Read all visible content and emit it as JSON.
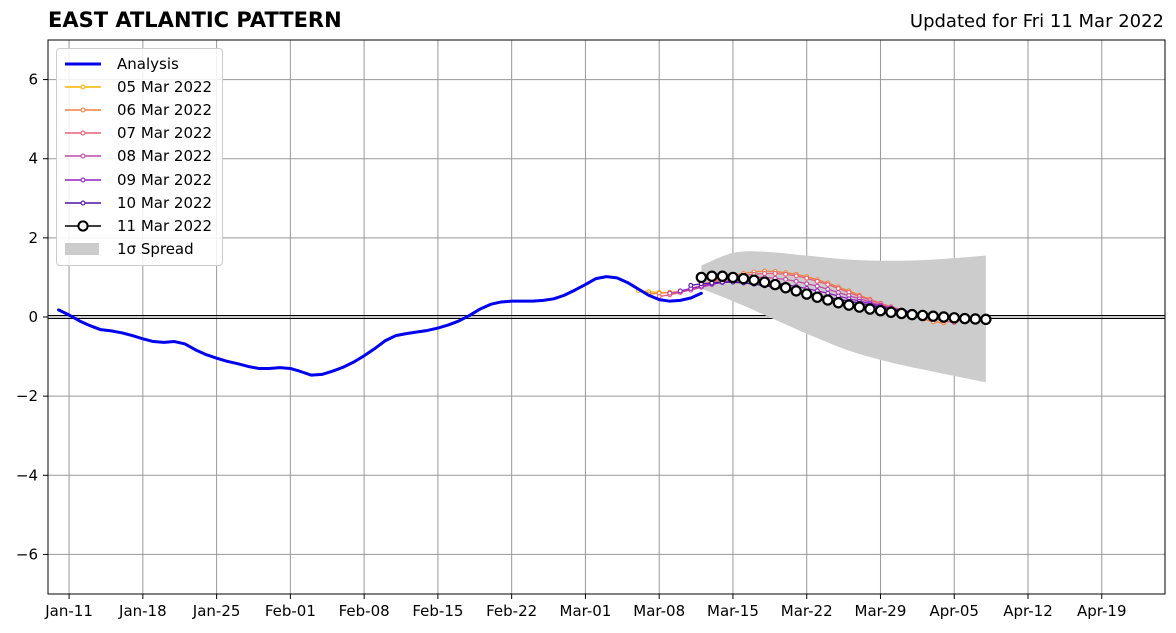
{
  "chart_data": {
    "type": "line",
    "title": "EAST ATLANTIC PATTERN",
    "subtitle": "Updated for Fri 11 Mar 2022",
    "xlabel": "",
    "ylabel": "",
    "ylim": [
      -7,
      7
    ],
    "yticks": [
      -6,
      -4,
      -2,
      0,
      2,
      4,
      6
    ],
    "ytick_labels": [
      "−6",
      "−4",
      "−2",
      "0",
      "2",
      "4",
      "6"
    ],
    "xlim": [
      "2022-01-09",
      "2022-04-25"
    ],
    "xticks": [
      "2022-01-11",
      "2022-01-18",
      "2022-01-25",
      "2022-02-01",
      "2022-02-08",
      "2022-02-15",
      "2022-02-22",
      "2022-03-01",
      "2022-03-08",
      "2022-03-15",
      "2022-03-22",
      "2022-03-29",
      "2022-04-05",
      "2022-04-12",
      "2022-04-19"
    ],
    "xtick_labels": [
      "Jan-11",
      "Jan-18",
      "Jan-25",
      "Feb-01",
      "Feb-08",
      "Feb-15",
      "Feb-22",
      "Mar-01",
      "Mar-08",
      "Mar-15",
      "Mar-22",
      "Mar-29",
      "Apr-05",
      "Apr-12",
      "Apr-19"
    ],
    "grid": true,
    "legend_position": "top-left",
    "analysis": {
      "name": "Analysis",
      "color": "#0000ee",
      "points": [
        [
          "2022-01-10",
          0.18
        ],
        [
          "2022-01-11",
          0.05
        ],
        [
          "2022-01-12",
          -0.1
        ],
        [
          "2022-01-13",
          -0.22
        ],
        [
          "2022-01-14",
          -0.32
        ],
        [
          "2022-01-15",
          -0.35
        ],
        [
          "2022-01-16",
          -0.4
        ],
        [
          "2022-01-17",
          -0.47
        ],
        [
          "2022-01-18",
          -0.55
        ],
        [
          "2022-01-19",
          -0.62
        ],
        [
          "2022-01-20",
          -0.64
        ],
        [
          "2022-01-21",
          -0.62
        ],
        [
          "2022-01-22",
          -0.68
        ],
        [
          "2022-01-23",
          -0.83
        ],
        [
          "2022-01-24",
          -0.95
        ],
        [
          "2022-01-25",
          -1.04
        ],
        [
          "2022-01-26",
          -1.12
        ],
        [
          "2022-01-27",
          -1.18
        ],
        [
          "2022-01-28",
          -1.25
        ],
        [
          "2022-01-29",
          -1.3
        ],
        [
          "2022-01-30",
          -1.3
        ],
        [
          "2022-01-31",
          -1.28
        ],
        [
          "2022-02-01",
          -1.3
        ],
        [
          "2022-02-02",
          -1.38
        ],
        [
          "2022-02-03",
          -1.47
        ],
        [
          "2022-02-04",
          -1.45
        ],
        [
          "2022-02-05",
          -1.37
        ],
        [
          "2022-02-06",
          -1.27
        ],
        [
          "2022-02-07",
          -1.14
        ],
        [
          "2022-02-08",
          -0.98
        ],
        [
          "2022-02-09",
          -0.8
        ],
        [
          "2022-02-10",
          -0.6
        ],
        [
          "2022-02-11",
          -0.47
        ],
        [
          "2022-02-12",
          -0.42
        ],
        [
          "2022-02-13",
          -0.38
        ],
        [
          "2022-02-14",
          -0.34
        ],
        [
          "2022-02-15",
          -0.28
        ],
        [
          "2022-02-16",
          -0.2
        ],
        [
          "2022-02-17",
          -0.1
        ],
        [
          "2022-02-18",
          0.04
        ],
        [
          "2022-02-19",
          0.2
        ],
        [
          "2022-02-20",
          0.32
        ],
        [
          "2022-02-21",
          0.38
        ],
        [
          "2022-02-22",
          0.4
        ],
        [
          "2022-02-23",
          0.4
        ],
        [
          "2022-02-24",
          0.4
        ],
        [
          "2022-02-25",
          0.42
        ],
        [
          "2022-02-26",
          0.46
        ],
        [
          "2022-02-27",
          0.55
        ],
        [
          "2022-02-28",
          0.68
        ],
        [
          "2022-03-01",
          0.82
        ],
        [
          "2022-03-02",
          0.97
        ],
        [
          "2022-03-03",
          1.02
        ],
        [
          "2022-03-04",
          0.99
        ],
        [
          "2022-03-05",
          0.87
        ],
        [
          "2022-03-06",
          0.71
        ],
        [
          "2022-03-07",
          0.55
        ],
        [
          "2022-03-08",
          0.44
        ],
        [
          "2022-03-09",
          0.4
        ],
        [
          "2022-03-10",
          0.42
        ],
        [
          "2022-03-11",
          0.48
        ],
        [
          "2022-03-12",
          0.6
        ]
      ]
    },
    "spread": {
      "name": "1σ Spread",
      "color": "#cccccc",
      "start": "2022-03-12",
      "end": "2022-04-08",
      "upper": [
        [
          "2022-03-12",
          1.3
        ],
        [
          "2022-03-15",
          1.62
        ],
        [
          "2022-03-18",
          1.65
        ],
        [
          "2022-03-22",
          1.55
        ],
        [
          "2022-03-26",
          1.45
        ],
        [
          "2022-03-30",
          1.42
        ],
        [
          "2022-04-03",
          1.45
        ],
        [
          "2022-04-08",
          1.55
        ]
      ],
      "lower": [
        [
          "2022-03-12",
          0.72
        ],
        [
          "2022-03-15",
          0.4
        ],
        [
          "2022-03-18",
          0.05
        ],
        [
          "2022-03-22",
          -0.42
        ],
        [
          "2022-03-26",
          -0.85
        ],
        [
          "2022-03-30",
          -1.15
        ],
        [
          "2022-04-03",
          -1.38
        ],
        [
          "2022-04-08",
          -1.65
        ]
      ]
    },
    "series": [
      {
        "name": "05 Mar 2022",
        "color": "#ffb300",
        "points": [
          [
            "2022-03-06",
            0.67
          ],
          [
            "2022-03-07",
            0.64
          ],
          [
            "2022-03-08",
            0.62
          ],
          [
            "2022-03-09",
            0.62
          ],
          [
            "2022-03-10",
            0.63
          ]
        ]
      },
      {
        "name": "06 Mar 2022",
        "color": "#f08040",
        "points": [
          [
            "2022-03-07",
            0.58
          ],
          [
            "2022-03-08",
            0.6
          ],
          [
            "2022-03-09",
            0.62
          ],
          [
            "2022-03-10",
            0.65
          ],
          [
            "2022-03-11",
            0.72
          ],
          [
            "2022-03-12",
            0.8
          ],
          [
            "2022-03-13",
            0.9
          ],
          [
            "2022-03-14",
            0.98
          ],
          [
            "2022-03-15",
            1.05
          ],
          [
            "2022-03-16",
            1.1
          ],
          [
            "2022-03-17",
            1.14
          ],
          [
            "2022-03-18",
            1.16
          ],
          [
            "2022-03-19",
            1.15
          ],
          [
            "2022-03-20",
            1.12
          ],
          [
            "2022-03-21",
            1.08
          ],
          [
            "2022-03-22",
            1.02
          ],
          [
            "2022-03-23",
            0.94
          ],
          [
            "2022-03-24",
            0.86
          ],
          [
            "2022-03-25",
            0.76
          ],
          [
            "2022-03-26",
            0.66
          ],
          [
            "2022-03-27",
            0.55
          ],
          [
            "2022-03-28",
            0.45
          ],
          [
            "2022-03-29",
            0.35
          ],
          [
            "2022-03-30",
            0.25
          ],
          [
            "2022-03-31",
            0.15
          ],
          [
            "2022-04-01",
            0.05
          ],
          [
            "2022-04-02",
            -0.05
          ],
          [
            "2022-04-03",
            -0.12
          ],
          [
            "2022-04-04",
            -0.15
          ]
        ]
      },
      {
        "name": "07 Mar 2022",
        "color": "#e8607a",
        "points": [
          [
            "2022-03-08",
            0.52
          ],
          [
            "2022-03-09",
            0.56
          ],
          [
            "2022-03-10",
            0.62
          ],
          [
            "2022-03-11",
            0.7
          ],
          [
            "2022-03-12",
            0.78
          ],
          [
            "2022-03-13",
            0.86
          ],
          [
            "2022-03-14",
            0.94
          ],
          [
            "2022-03-15",
            1.0
          ],
          [
            "2022-03-16",
            1.05
          ],
          [
            "2022-03-17",
            1.08
          ],
          [
            "2022-03-18",
            1.1
          ],
          [
            "2022-03-19",
            1.1
          ],
          [
            "2022-03-20",
            1.08
          ],
          [
            "2022-03-21",
            1.04
          ],
          [
            "2022-03-22",
            0.98
          ],
          [
            "2022-03-23",
            0.9
          ],
          [
            "2022-03-24",
            0.82
          ],
          [
            "2022-03-25",
            0.72
          ],
          [
            "2022-03-26",
            0.62
          ],
          [
            "2022-03-27",
            0.52
          ],
          [
            "2022-03-28",
            0.43
          ],
          [
            "2022-03-29",
            0.34
          ],
          [
            "2022-03-30",
            0.26
          ],
          [
            "2022-03-31",
            0.18
          ],
          [
            "2022-04-01",
            0.1
          ],
          [
            "2022-04-02",
            0.03
          ],
          [
            "2022-04-03",
            -0.04
          ],
          [
            "2022-04-04",
            -0.1
          ],
          [
            "2022-04-05",
            -0.14
          ]
        ]
      },
      {
        "name": "08 Mar 2022",
        "color": "#c04aa8",
        "points": [
          [
            "2022-03-09",
            0.6
          ],
          [
            "2022-03-10",
            0.63
          ],
          [
            "2022-03-11",
            0.68
          ],
          [
            "2022-03-12",
            0.75
          ],
          [
            "2022-03-13",
            0.82
          ],
          [
            "2022-03-14",
            0.88
          ],
          [
            "2022-03-15",
            0.94
          ],
          [
            "2022-03-16",
            0.98
          ],
          [
            "2022-03-17",
            1.0
          ],
          [
            "2022-03-18",
            1.0
          ],
          [
            "2022-03-19",
            0.98
          ],
          [
            "2022-03-20",
            0.95
          ],
          [
            "2022-03-21",
            0.9
          ],
          [
            "2022-03-22",
            0.84
          ],
          [
            "2022-03-23",
            0.78
          ],
          [
            "2022-03-24",
            0.7
          ],
          [
            "2022-03-25",
            0.62
          ],
          [
            "2022-03-26",
            0.54
          ],
          [
            "2022-03-27",
            0.46
          ],
          [
            "2022-03-28",
            0.38
          ],
          [
            "2022-03-29",
            0.3
          ],
          [
            "2022-03-30",
            0.23
          ],
          [
            "2022-03-31",
            0.16
          ],
          [
            "2022-04-01",
            0.1
          ],
          [
            "2022-04-02",
            0.04
          ],
          [
            "2022-04-03",
            0.0
          ],
          [
            "2022-04-04",
            -0.03
          ],
          [
            "2022-04-05",
            -0.05
          ],
          [
            "2022-04-06",
            -0.06
          ]
        ]
      },
      {
        "name": "09 Mar 2022",
        "color": "#9020c0",
        "points": [
          [
            "2022-03-10",
            0.66
          ],
          [
            "2022-03-11",
            0.72
          ],
          [
            "2022-03-12",
            0.78
          ],
          [
            "2022-03-13",
            0.83
          ],
          [
            "2022-03-14",
            0.87
          ],
          [
            "2022-03-15",
            0.9
          ],
          [
            "2022-03-16",
            0.92
          ],
          [
            "2022-03-17",
            0.92
          ],
          [
            "2022-03-18",
            0.9
          ],
          [
            "2022-03-19",
            0.86
          ],
          [
            "2022-03-20",
            0.82
          ],
          [
            "2022-03-21",
            0.77
          ],
          [
            "2022-03-22",
            0.72
          ],
          [
            "2022-03-23",
            0.66
          ],
          [
            "2022-03-24",
            0.6
          ],
          [
            "2022-03-25",
            0.53
          ],
          [
            "2022-03-26",
            0.46
          ],
          [
            "2022-03-27",
            0.4
          ],
          [
            "2022-03-28",
            0.34
          ],
          [
            "2022-03-29",
            0.28
          ],
          [
            "2022-03-30",
            0.22
          ],
          [
            "2022-03-31",
            0.17
          ],
          [
            "2022-04-01",
            0.12
          ],
          [
            "2022-04-02",
            0.08
          ],
          [
            "2022-04-03",
            0.05
          ],
          [
            "2022-04-04",
            0.02
          ],
          [
            "2022-04-05",
            0.0
          ],
          [
            "2022-04-06",
            -0.02
          ],
          [
            "2022-04-07",
            -0.03
          ]
        ]
      },
      {
        "name": "10 Mar 2022",
        "color": "#5010a0",
        "points": [
          [
            "2022-03-11",
            0.8
          ],
          [
            "2022-03-12",
            0.84
          ],
          [
            "2022-03-13",
            0.86
          ],
          [
            "2022-03-14",
            0.88
          ],
          [
            "2022-03-15",
            0.88
          ],
          [
            "2022-03-16",
            0.86
          ],
          [
            "2022-03-17",
            0.83
          ],
          [
            "2022-03-18",
            0.79
          ],
          [
            "2022-03-19",
            0.75
          ],
          [
            "2022-03-20",
            0.7
          ],
          [
            "2022-03-21",
            0.65
          ],
          [
            "2022-03-22",
            0.6
          ],
          [
            "2022-03-23",
            0.55
          ],
          [
            "2022-03-24",
            0.5
          ],
          [
            "2022-03-25",
            0.45
          ],
          [
            "2022-03-26",
            0.4
          ],
          [
            "2022-03-27",
            0.35
          ],
          [
            "2022-03-28",
            0.3
          ],
          [
            "2022-03-29",
            0.25
          ],
          [
            "2022-03-30",
            0.2
          ],
          [
            "2022-03-31",
            0.16
          ],
          [
            "2022-04-01",
            0.12
          ],
          [
            "2022-04-02",
            0.08
          ],
          [
            "2022-04-03",
            0.05
          ],
          [
            "2022-04-04",
            0.02
          ],
          [
            "2022-04-05",
            0.0
          ],
          [
            "2022-04-06",
            -0.02
          ],
          [
            "2022-04-07",
            -0.03
          ],
          [
            "2022-04-08",
            -0.04
          ]
        ]
      },
      {
        "name": "11 Mar 2022",
        "color": "#000000",
        "points": [
          [
            "2022-03-12",
            1.0
          ],
          [
            "2022-03-13",
            1.03
          ],
          [
            "2022-03-14",
            1.03
          ],
          [
            "2022-03-15",
            1.0
          ],
          [
            "2022-03-16",
            0.97
          ],
          [
            "2022-03-17",
            0.93
          ],
          [
            "2022-03-18",
            0.88
          ],
          [
            "2022-03-19",
            0.82
          ],
          [
            "2022-03-20",
            0.74
          ],
          [
            "2022-03-21",
            0.66
          ],
          [
            "2022-03-22",
            0.58
          ],
          [
            "2022-03-23",
            0.5
          ],
          [
            "2022-03-24",
            0.43
          ],
          [
            "2022-03-25",
            0.36
          ],
          [
            "2022-03-26",
            0.3
          ],
          [
            "2022-03-27",
            0.25
          ],
          [
            "2022-03-28",
            0.2
          ],
          [
            "2022-03-29",
            0.16
          ],
          [
            "2022-03-30",
            0.12
          ],
          [
            "2022-03-31",
            0.09
          ],
          [
            "2022-04-01",
            0.06
          ],
          [
            "2022-04-02",
            0.04
          ],
          [
            "2022-04-03",
            0.02
          ],
          [
            "2022-04-04",
            0.0
          ],
          [
            "2022-04-05",
            -0.02
          ],
          [
            "2022-04-06",
            -0.04
          ],
          [
            "2022-04-07",
            -0.05
          ],
          [
            "2022-04-08",
            -0.06
          ]
        ]
      }
    ]
  },
  "legend": {
    "items": [
      {
        "label": "Analysis",
        "color": "#0000ee",
        "kind": "thick"
      },
      {
        "label": "05 Mar 2022",
        "color": "#ffb300",
        "kind": "marker"
      },
      {
        "label": "06 Mar 2022",
        "color": "#f08040",
        "kind": "marker"
      },
      {
        "label": "07 Mar 2022",
        "color": "#e8607a",
        "kind": "marker"
      },
      {
        "label": "08 Mar 2022",
        "color": "#c04aa8",
        "kind": "marker"
      },
      {
        "label": "09 Mar 2022",
        "color": "#9020c0",
        "kind": "marker"
      },
      {
        "label": "10 Mar 2022",
        "color": "#5010a0",
        "kind": "marker"
      },
      {
        "label": "11 Mar 2022",
        "color": "#000000",
        "kind": "bigmarker"
      },
      {
        "label": "1σ Spread",
        "color": "#cccccc",
        "kind": "patch"
      }
    ]
  }
}
